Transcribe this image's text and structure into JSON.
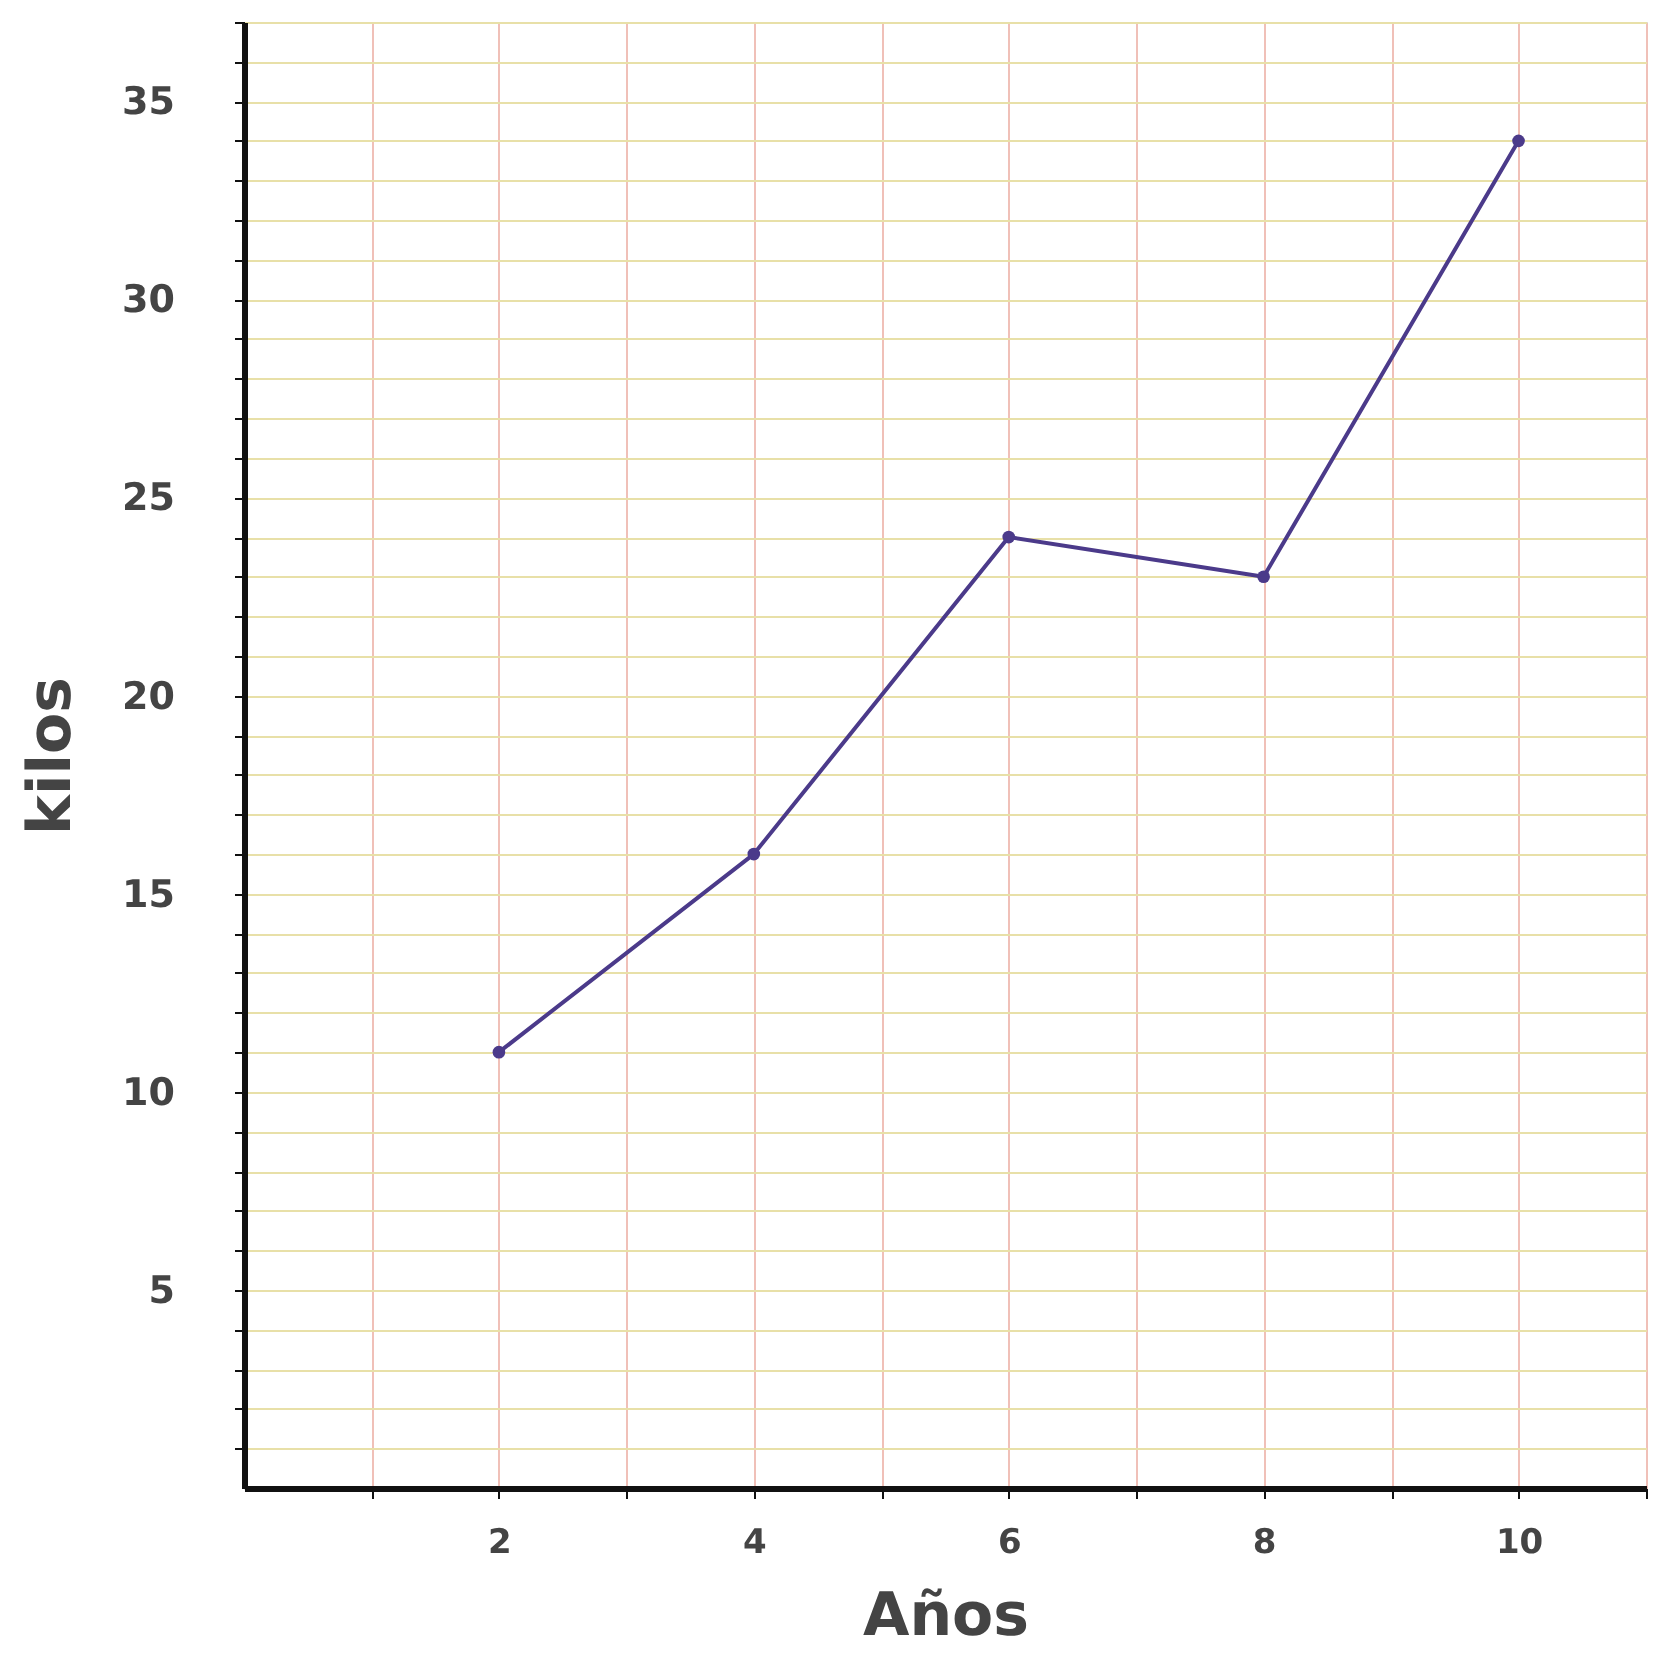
{
  "chart_data": {
    "type": "line",
    "xlabel": "Años",
    "ylabel": "kilos",
    "x": [
      2,
      4,
      6,
      8,
      10
    ],
    "series": [
      {
        "color": "#4b3a8a",
        "values": [
          11,
          16,
          24,
          23,
          34
        ]
      }
    ],
    "xlim": [
      0,
      11
    ],
    "xticks": [
      {
        "value": 1,
        "label": null
      },
      2,
      {
        "value": 3,
        "label": null
      },
      4,
      {
        "value": 5,
        "label": null
      },
      6,
      {
        "value": 7,
        "label": null
      },
      8,
      {
        "value": 9,
        "label": null
      },
      10,
      {
        "value": 11,
        "label": null
      }
    ],
    "ylim": [
      0,
      37
    ],
    "yticks": [
      {
        "value": 1,
        "label": null
      },
      {
        "value": 2,
        "label": null
      },
      {
        "value": 3,
        "label": null
      },
      {
        "value": 4,
        "label": null
      },
      5,
      {
        "value": 6,
        "label": null
      },
      {
        "value": 7,
        "label": null
      },
      {
        "value": 8,
        "label": null
      },
      {
        "value": 9,
        "label": null
      },
      10,
      {
        "value": 11,
        "label": null
      },
      {
        "value": 12,
        "label": null
      },
      {
        "value": 13,
        "label": null
      },
      {
        "value": 14,
        "label": null
      },
      15,
      {
        "value": 16,
        "label": null
      },
      {
        "value": 17,
        "label": null
      },
      {
        "value": 18,
        "label": null
      },
      {
        "value": 19,
        "label": null
      },
      20,
      {
        "value": 21,
        "label": null
      },
      {
        "value": 22,
        "label": null
      },
      {
        "value": 23,
        "label": null
      },
      {
        "value": 24,
        "label": null
      },
      25,
      {
        "value": 26,
        "label": null
      },
      {
        "value": 27,
        "label": null
      },
      {
        "value": 28,
        "label": null
      },
      {
        "value": 29,
        "label": null
      },
      30,
      {
        "value": 31,
        "label": null
      },
      {
        "value": 32,
        "label": null
      },
      {
        "value": 33,
        "label": null
      },
      {
        "value": 34,
        "label": null
      },
      35,
      {
        "value": 36,
        "label": null
      },
      {
        "value": 37,
        "label": null
      }
    ],
    "grid": true,
    "marker": "circle",
    "line_style": "solid"
  }
}
